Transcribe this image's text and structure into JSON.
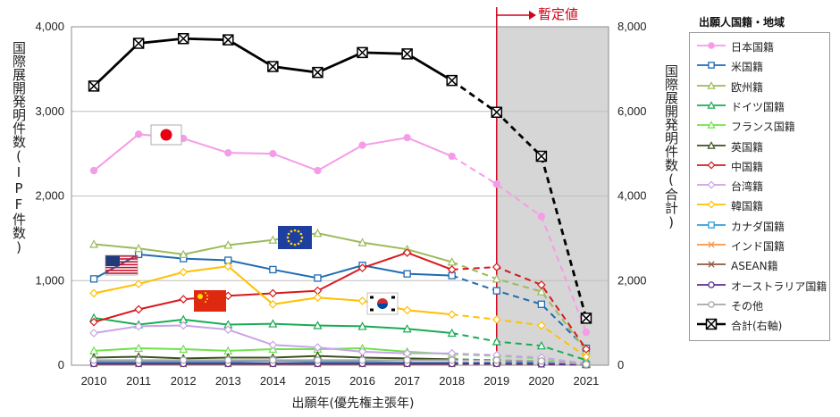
{
  "chart_data": {
    "type": "line",
    "x": [
      "2010",
      "2011",
      "2012",
      "2013",
      "2014",
      "2015",
      "2016",
      "2017",
      "2018",
      "2019",
      "2020",
      "2021"
    ],
    "provisional_from": "2019",
    "provisional_label": "暫定値",
    "ylabel_left": "国際展開発明件数(IPF件数)",
    "ylabel_right": "国際展開発明件数(合計)",
    "xlabel": "出願年(優先権主張年)",
    "left_axis": {
      "min": 0,
      "max": 4000,
      "ticks": [
        "0",
        "1,000",
        "2,000",
        "3,000",
        "4,000"
      ]
    },
    "right_axis": {
      "min": 0,
      "max": 8000,
      "ticks": [
        "0",
        "2,000",
        "4,000",
        "6,000",
        "8,000"
      ]
    },
    "grid": true,
    "legend_title": "出願人国籍・地域",
    "legend_position": "right",
    "series": [
      {
        "name": "日本国籍",
        "color": "#f59ce8",
        "marker": "circle",
        "axis": "left",
        "values": [
          2300,
          2730,
          2680,
          2510,
          2500,
          2300,
          2600,
          2690,
          2470,
          2140,
          1760,
          390
        ]
      },
      {
        "name": "米国籍",
        "color": "#1f6bb0",
        "marker": "square",
        "axis": "left",
        "values": [
          1020,
          1310,
          1260,
          1240,
          1130,
          1030,
          1180,
          1080,
          1060,
          880,
          720,
          200
        ]
      },
      {
        "name": "欧州籍",
        "color": "#9bbb59",
        "marker": "triangle",
        "axis": "left",
        "values": [
          1430,
          1380,
          1310,
          1420,
          1480,
          1560,
          1450,
          1370,
          1220,
          1020,
          870,
          170
        ]
      },
      {
        "name": "ドイツ国籍",
        "color": "#1aab54",
        "marker": "triangle",
        "axis": "left",
        "values": [
          560,
          480,
          540,
          480,
          490,
          470,
          460,
          430,
          380,
          280,
          230,
          60
        ]
      },
      {
        "name": "フランス国籍",
        "color": "#6fe24a",
        "marker": "triangle",
        "axis": "left",
        "values": [
          170,
          200,
          190,
          170,
          190,
          190,
          200,
          160,
          130,
          110,
          80,
          20
        ]
      },
      {
        "name": "英国籍",
        "color": "#3d4f1f",
        "marker": "triangle",
        "axis": "left",
        "values": [
          90,
          100,
          80,
          90,
          90,
          110,
          90,
          80,
          70,
          60,
          40,
          10
        ]
      },
      {
        "name": "中国籍",
        "color": "#d7191c",
        "marker": "diamond",
        "axis": "left",
        "values": [
          510,
          660,
          780,
          820,
          850,
          880,
          1150,
          1330,
          1130,
          1160,
          950,
          190
        ]
      },
      {
        "name": "台湾籍",
        "color": "#c9a3e8",
        "marker": "diamond",
        "axis": "left",
        "values": [
          380,
          460,
          470,
          420,
          240,
          210,
          160,
          140,
          140,
          120,
          90,
          20
        ]
      },
      {
        "name": "韓国籍",
        "color": "#ffc000",
        "marker": "diamond",
        "axis": "left",
        "values": [
          850,
          960,
          1100,
          1170,
          720,
          800,
          760,
          650,
          600,
          540,
          470,
          100
        ]
      },
      {
        "name": "カナダ国籍",
        "color": "#2ea0d6",
        "marker": "square",
        "axis": "left",
        "values": [
          40,
          40,
          40,
          40,
          50,
          40,
          40,
          30,
          30,
          30,
          30,
          10
        ]
      },
      {
        "name": "インド国籍",
        "color": "#f79646",
        "marker": "cross",
        "axis": "left",
        "values": [
          20,
          20,
          20,
          20,
          20,
          20,
          20,
          20,
          20,
          20,
          10,
          5
        ]
      },
      {
        "name": "ASEAN籍",
        "color": "#8b5a3c",
        "marker": "cross",
        "axis": "left",
        "values": [
          15,
          15,
          15,
          15,
          15,
          15,
          15,
          15,
          15,
          15,
          10,
          5
        ]
      },
      {
        "name": "オーストラリア国籍",
        "color": "#5b2c91",
        "marker": "circle",
        "axis": "left",
        "values": [
          20,
          20,
          20,
          20,
          20,
          20,
          20,
          20,
          20,
          20,
          15,
          5
        ]
      },
      {
        "name": "その他",
        "color": "#a6a6a6",
        "marker": "circle",
        "axis": "left",
        "values": [
          60,
          60,
          60,
          60,
          60,
          60,
          60,
          60,
          60,
          60,
          50,
          10
        ]
      },
      {
        "name": "合計(右軸)",
        "color": "#000000",
        "marker": "boxx",
        "axis": "right",
        "values": [
          6600,
          7610,
          7720,
          7690,
          7060,
          6920,
          7390,
          7360,
          6730,
          5980,
          4940,
          1110
        ]
      }
    ]
  }
}
